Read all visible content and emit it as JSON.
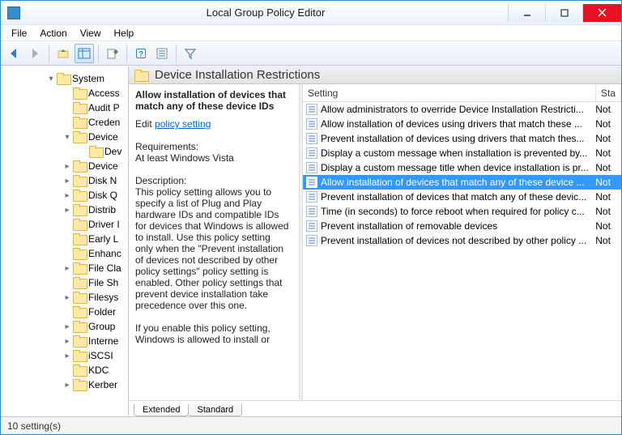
{
  "window": {
    "title": "Local Group Policy Editor",
    "border_color": "#2a8dd4",
    "close_color": "#e81123"
  },
  "menu": {
    "items": [
      "File",
      "Action",
      "View",
      "Help"
    ]
  },
  "toolbar": {
    "buttons": [
      {
        "name": "back-icon",
        "glyph": "arrow-left",
        "color": "#2d7bd1"
      },
      {
        "name": "forward-icon",
        "glyph": "arrow-right",
        "color": "#b0b0b0"
      },
      {
        "name": "sep"
      },
      {
        "name": "up-folder-icon",
        "glyph": "folder-up",
        "color": "#e6c25a"
      },
      {
        "name": "show-tree-icon",
        "glyph": "panes",
        "color": "#2d7bd1",
        "active": true
      },
      {
        "name": "sep"
      },
      {
        "name": "export-icon",
        "glyph": "export",
        "color": "#2fa23a"
      },
      {
        "name": "sep"
      },
      {
        "name": "help-icon",
        "glyph": "help",
        "color": "#2d7bd1"
      },
      {
        "name": "properties-icon",
        "glyph": "props",
        "color": "#2d7bd1"
      },
      {
        "name": "sep"
      },
      {
        "name": "filter-icon",
        "glyph": "funnel",
        "color": "#6b87b0"
      }
    ]
  },
  "tree": {
    "root_label": "System",
    "root_indent": 56,
    "child_indent": 76,
    "grandchild_indent": 96,
    "items": [
      {
        "label": "Access",
        "exp": ""
      },
      {
        "label": "Audit P",
        "exp": ""
      },
      {
        "label": "Creden",
        "exp": ""
      },
      {
        "label": "Device",
        "exp": "▾",
        "children": [
          {
            "label": "Dev",
            "exp": ""
          }
        ]
      },
      {
        "label": "Device",
        "exp": "▸"
      },
      {
        "label": "Disk N",
        "exp": "▸"
      },
      {
        "label": "Disk Q",
        "exp": "▸"
      },
      {
        "label": "Distrib",
        "exp": "▸"
      },
      {
        "label": "Driver I",
        "exp": ""
      },
      {
        "label": "Early L",
        "exp": ""
      },
      {
        "label": "Enhanc",
        "exp": ""
      },
      {
        "label": "File Cla",
        "exp": "▸"
      },
      {
        "label": "File Sh",
        "exp": ""
      },
      {
        "label": "Filesys",
        "exp": "▸"
      },
      {
        "label": "Folder",
        "exp": ""
      },
      {
        "label": "Group",
        "exp": "▸"
      },
      {
        "label": "Interne",
        "exp": "▸"
      },
      {
        "label": "iSCSI",
        "exp": "▸"
      },
      {
        "label": "KDC",
        "exp": ""
      },
      {
        "label": "Kerber",
        "exp": "▸"
      }
    ]
  },
  "header": {
    "title": "Device Installation Restrictions"
  },
  "description": {
    "selected_title": "Allow installation of devices that match any of these device IDs",
    "edit_label": "Edit",
    "edit_link_text": "policy setting",
    "req_label": "Requirements:",
    "req_value": "At least Windows Vista",
    "desc_label": "Description:",
    "desc_body": "This policy setting allows you to specify a list of Plug and Play hardware IDs and compatible IDs for devices that Windows is allowed to install. Use this policy setting only when the \"Prevent installation of devices not described by other policy settings\" policy setting is enabled. Other policy settings that prevent device installation take precedence over this one.",
    "desc_body2": "If you enable this policy setting, Windows is allowed to install or"
  },
  "columns": {
    "c1": "Setting",
    "c2": "Sta"
  },
  "settings": [
    {
      "label": "Allow administrators to override Device Installation Restricti...",
      "state": "Not"
    },
    {
      "label": "Allow installation of devices using drivers that match these ...",
      "state": "Not"
    },
    {
      "label": "Prevent installation of devices using drivers that match thes...",
      "state": "Not"
    },
    {
      "label": "Display a custom message when installation is prevented by...",
      "state": "Not"
    },
    {
      "label": "Display a custom message title when device installation is pr...",
      "state": "Not"
    },
    {
      "label": "Allow installation of devices that match any of these device ...",
      "state": "Not",
      "selected": true
    },
    {
      "label": "Prevent installation of devices that match any of these devic...",
      "state": "Not"
    },
    {
      "label": "Time (in seconds) to force reboot when required for policy c...",
      "state": "Not"
    },
    {
      "label": "Prevent installation of removable devices",
      "state": "Not"
    },
    {
      "label": "Prevent installation of devices not described by other policy ...",
      "state": "Not"
    }
  ],
  "tabs": {
    "extended": "Extended",
    "standard": "Standard",
    "active": "extended"
  },
  "status": {
    "text": "10 setting(s)"
  }
}
